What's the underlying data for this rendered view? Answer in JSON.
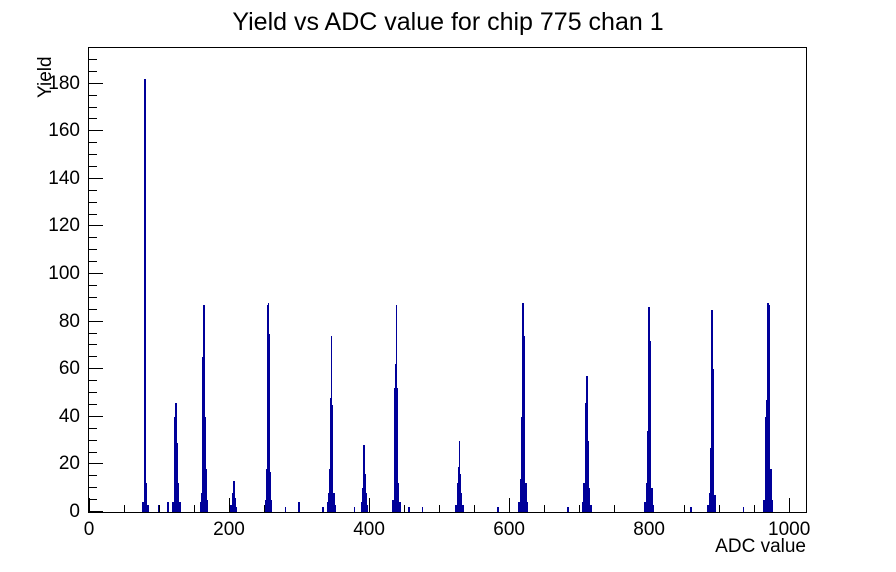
{
  "page": {
    "title": "Yield vs ADC value for chip 775 chan 1"
  },
  "chart_data": {
    "type": "bar",
    "title": "Yield vs ADC value for chip 775 chan 1",
    "xlabel": "ADC value",
    "ylabel": "Yield",
    "xlim": [
      0,
      1024
    ],
    "ylim": [
      0,
      195
    ],
    "grid": false,
    "legend": false,
    "bar_color": "#000099",
    "axis_color": "#000000",
    "x_tick_labels": [
      0,
      200,
      400,
      600,
      800,
      1000
    ],
    "x_minor_step": 50,
    "y_tick_labels": [
      0,
      20,
      40,
      60,
      80,
      100,
      120,
      140,
      160,
      180
    ],
    "y_minor_step": 5,
    "bins": [
      [
        77,
        4
      ],
      [
        79,
        19
      ],
      [
        80,
        182
      ],
      [
        81,
        100
      ],
      [
        82,
        12
      ],
      [
        84,
        3
      ],
      [
        99,
        3
      ],
      [
        113,
        4
      ],
      [
        120,
        4
      ],
      [
        122,
        25
      ],
      [
        123,
        40
      ],
      [
        124,
        46
      ],
      [
        125,
        36
      ],
      [
        126,
        29
      ],
      [
        128,
        12
      ],
      [
        130,
        4
      ],
      [
        159,
        4
      ],
      [
        161,
        8
      ],
      [
        162,
        39
      ],
      [
        163,
        65
      ],
      [
        164,
        87
      ],
      [
        165,
        64
      ],
      [
        166,
        40
      ],
      [
        167,
        18
      ],
      [
        169,
        5
      ],
      [
        203,
        3
      ],
      [
        205,
        8
      ],
      [
        207,
        13
      ],
      [
        209,
        6
      ],
      [
        211,
        2
      ],
      [
        252,
        5
      ],
      [
        254,
        18
      ],
      [
        255,
        87
      ],
      [
        256,
        88
      ],
      [
        257,
        75
      ],
      [
        258,
        24
      ],
      [
        259,
        17
      ],
      [
        260,
        5
      ],
      [
        281,
        2
      ],
      [
        300,
        4
      ],
      [
        334,
        2
      ],
      [
        341,
        4
      ],
      [
        343,
        8
      ],
      [
        344,
        18
      ],
      [
        345,
        48
      ],
      [
        346,
        74
      ],
      [
        347,
        45
      ],
      [
        348,
        20
      ],
      [
        350,
        8
      ],
      [
        352,
        3
      ],
      [
        379,
        2
      ],
      [
        389,
        4
      ],
      [
        391,
        10
      ],
      [
        392,
        19
      ],
      [
        393,
        28
      ],
      [
        394,
        16
      ],
      [
        396,
        8
      ],
      [
        398,
        3
      ],
      [
        434,
        5
      ],
      [
        436,
        30
      ],
      [
        437,
        52
      ],
      [
        438,
        62
      ],
      [
        439,
        87
      ],
      [
        440,
        52
      ],
      [
        441,
        28
      ],
      [
        442,
        12
      ],
      [
        444,
        4
      ],
      [
        457,
        2
      ],
      [
        476,
        2
      ],
      [
        524,
        3
      ],
      [
        526,
        12
      ],
      [
        528,
        19
      ],
      [
        529,
        30
      ],
      [
        530,
        16
      ],
      [
        532,
        8
      ],
      [
        534,
        3
      ],
      [
        584,
        2
      ],
      [
        614,
        4
      ],
      [
        616,
        14
      ],
      [
        618,
        40
      ],
      [
        619,
        60
      ],
      [
        620,
        88
      ],
      [
        621,
        74
      ],
      [
        622,
        40
      ],
      [
        624,
        12
      ],
      [
        626,
        4
      ],
      [
        684,
        2
      ],
      [
        705,
        4
      ],
      [
        707,
        12
      ],
      [
        709,
        27
      ],
      [
        710,
        46
      ],
      [
        711,
        57
      ],
      [
        712,
        53
      ],
      [
        713,
        30
      ],
      [
        715,
        10
      ],
      [
        717,
        3
      ],
      [
        794,
        4
      ],
      [
        796,
        12
      ],
      [
        798,
        34
      ],
      [
        799,
        73
      ],
      [
        800,
        86
      ],
      [
        801,
        72
      ],
      [
        802,
        34
      ],
      [
        804,
        10
      ],
      [
        806,
        3
      ],
      [
        860,
        2
      ],
      [
        884,
        3
      ],
      [
        886,
        8
      ],
      [
        888,
        27
      ],
      [
        889,
        63
      ],
      [
        890,
        85
      ],
      [
        891,
        60
      ],
      [
        892,
        25
      ],
      [
        894,
        7
      ],
      [
        935,
        2
      ],
      [
        964,
        5
      ],
      [
        966,
        18
      ],
      [
        967,
        40
      ],
      [
        968,
        47
      ],
      [
        969,
        87
      ],
      [
        970,
        88
      ],
      [
        971,
        87
      ],
      [
        972,
        40
      ],
      [
        974,
        18
      ],
      [
        976,
        5
      ]
    ]
  }
}
